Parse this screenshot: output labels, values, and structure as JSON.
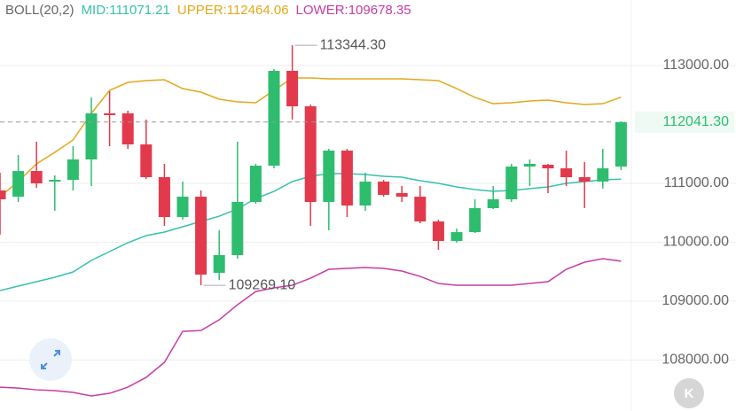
{
  "header": {
    "indicator": "BOLL(20,2)",
    "mid": "MID:111071.21",
    "upper": "UPPER:112464.06",
    "lower": "LOWER:109678.35"
  },
  "chart_data": {
    "type": "candlestick",
    "colors": {
      "up": "#2ebd6e",
      "down": "#e2394c"
    },
    "open": [
      110879,
      110774,
      111210,
      111030,
      111060,
      111406,
      112188,
      112188,
      111661,
      111105,
      110428,
      110774,
      109481,
      109782,
      110684,
      111300,
      112910,
      112308,
      110684,
      111556,
      110624,
      111030,
      110834,
      110774,
      110353,
      110022,
      110172,
      110579,
      110729,
      111285,
      111316,
      111255,
      111105,
      111030,
      111285
    ],
    "close": [
      110729,
      111210,
      111000,
      111060,
      111406,
      112188,
      112158,
      111661,
      111105,
      110428,
      110774,
      109451,
      109782,
      110684,
      111300,
      112910,
      112308,
      110684,
      111556,
      110624,
      111030,
      110804,
      110774,
      110353,
      110022,
      110172,
      110579,
      110729,
      111285,
      111331,
      111255,
      111105,
      111030,
      111255,
      112041.3
    ],
    "high": [
      111180,
      111481,
      111707,
      111135,
      111631,
      112459,
      112564,
      112233,
      112083,
      111331,
      111030,
      110879,
      110203,
      111707,
      111331,
      112940,
      113344.3,
      112338,
      111586,
      111586,
      111180,
      111060,
      110955,
      110955,
      110383,
      110233,
      110729,
      110955,
      111331,
      111406,
      111331,
      111556,
      111361,
      111586,
      112052
    ],
    "low": [
      110127,
      110684,
      110924,
      110533,
      110879,
      110955,
      111631,
      111586,
      111075,
      110278,
      110383,
      109269.1,
      109360,
      109721,
      110654,
      111255,
      112083,
      110278,
      110203,
      110428,
      110533,
      110774,
      110684,
      110323,
      109872,
      109992,
      110157,
      110564,
      110684,
      110955,
      110834,
      110955,
      110579,
      110909,
      111225
    ],
    "overlays": [
      {
        "name": "MID",
        "color": "#35c2ad",
        "values": [
          109180,
          109255,
          109331,
          109406,
          109496,
          109692,
          109842,
          109992,
          110113,
          110173,
          110263,
          110353,
          110443,
          110564,
          110744,
          110864,
          111030,
          111120,
          111165,
          111165,
          111150,
          111120,
          111105,
          111045,
          111000,
          110940,
          110894,
          110864,
          110879,
          110909,
          110940,
          111000,
          111030,
          111060,
          111071.21
        ]
      },
      {
        "name": "UPPER",
        "color": "#e3a81a",
        "values": [
          110774,
          111030,
          111331,
          111526,
          111737,
          112188,
          112579,
          112714,
          112744,
          112759,
          112609,
          112549,
          112429,
          112383,
          112368,
          112579,
          112789,
          112789,
          112774,
          112774,
          112774,
          112774,
          112774,
          112759,
          112744,
          112609,
          112459,
          112353,
          112368,
          112398,
          112413,
          112368,
          112338,
          112353,
          112464.06
        ]
      },
      {
        "name": "LOWER",
        "color": "#c83ba6",
        "values": [
          107540,
          107525,
          107495,
          107480,
          107450,
          107390,
          107435,
          107540,
          107705,
          107961,
          108487,
          108502,
          108683,
          108939,
          109164,
          109225,
          109270,
          109390,
          109541,
          109556,
          109571,
          109556,
          109511,
          109420,
          109300,
          109270,
          109270,
          109270,
          109270,
          109300,
          109330,
          109541,
          109661,
          109721,
          109678.35
        ]
      }
    ],
    "ylim": [
      107135,
      114113
    ],
    "yticks": [
      {
        "value": 108000,
        "label": "108000.00"
      },
      {
        "value": 109000,
        "label": "109000.00"
      },
      {
        "value": 110000,
        "label": "110000.00"
      },
      {
        "value": 111000,
        "label": "111000.00"
      },
      {
        "value": 113000,
        "label": "113000.00"
      }
    ],
    "grid": true,
    "last_price": {
      "value": 112041.3,
      "label": "112041.30"
    },
    "high_marker": {
      "value": 113344.3,
      "label": "113344.30"
    },
    "low_marker": {
      "value": 109269.1,
      "label": "109269.10"
    }
  },
  "logo_text": "K"
}
